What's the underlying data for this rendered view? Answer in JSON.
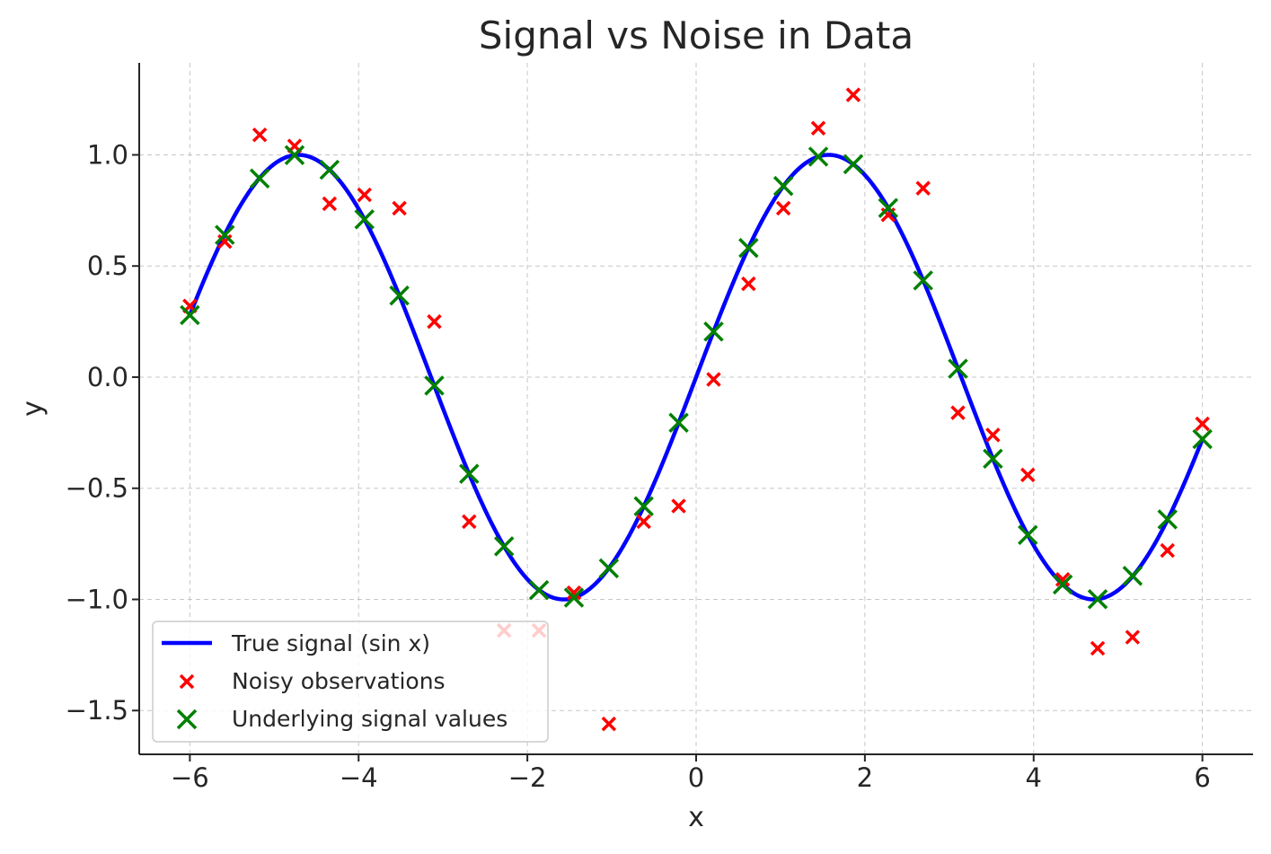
{
  "chart_data": {
    "type": "scatter",
    "title": "Signal vs Noise in Data",
    "xlabel": "x",
    "ylabel": "y",
    "xlim": [
      -6.6,
      6.6
    ],
    "ylim": [
      -1.697,
      1.414
    ],
    "grid": true,
    "legend_placement": "lower-left",
    "xticks": [
      -6,
      -4,
      -2,
      0,
      2,
      4,
      6
    ],
    "xtick_labels": [
      "−6",
      "−4",
      "−2",
      "0",
      "2",
      "4",
      "6"
    ],
    "yticks": [
      -1.5,
      -1.0,
      -0.5,
      0.0,
      0.5,
      1.0
    ],
    "ytick_labels": [
      "−1.5",
      "−1.0",
      "−0.5",
      "0.0",
      "0.5",
      "1.0"
    ],
    "series": [
      {
        "name": "True signal (sin x)",
        "kind": "line",
        "function": "sin",
        "x_range": [
          -6,
          6
        ],
        "color": "#0000ff"
      },
      {
        "name": "Noisy observations",
        "kind": "scatter",
        "marker": "x",
        "color": "#ff0000",
        "x": [
          -6.0,
          -5.586,
          -5.172,
          -4.759,
          -4.345,
          -3.931,
          -3.517,
          -3.103,
          -2.69,
          -2.276,
          -1.862,
          -1.448,
          -1.034,
          -0.621,
          -0.207,
          0.207,
          0.621,
          1.034,
          1.448,
          1.862,
          2.276,
          2.69,
          3.103,
          3.517,
          3.931,
          4.345,
          4.759,
          5.172,
          5.586,
          6.0
        ],
        "y": [
          0.32,
          0.61,
          1.09,
          1.04,
          0.78,
          0.82,
          0.76,
          0.25,
          -0.65,
          -1.14,
          -1.14,
          -0.97,
          -1.56,
          -0.65,
          -0.58,
          -0.01,
          0.42,
          0.76,
          1.12,
          1.27,
          0.73,
          0.85,
          -0.16,
          -0.26,
          -0.44,
          -0.91,
          -1.22,
          -1.17,
          -0.78,
          -0.21
        ]
      },
      {
        "name": "Underlying signal values",
        "kind": "scatter",
        "marker": "x",
        "color": "#008000",
        "x": [
          -6.0,
          -5.586,
          -5.172,
          -4.759,
          -4.345,
          -3.931,
          -3.517,
          -3.103,
          -2.69,
          -2.276,
          -1.862,
          -1.448,
          -1.034,
          -0.621,
          -0.207,
          0.207,
          0.621,
          1.034,
          1.448,
          1.862,
          2.276,
          2.69,
          3.103,
          3.517,
          3.931,
          4.345,
          4.759,
          5.172,
          5.586,
          6.0
        ],
        "y": [
          0.279,
          0.64,
          0.894,
          0.999,
          0.933,
          0.71,
          0.367,
          -0.038,
          -0.435,
          -0.761,
          -0.958,
          -0.992,
          -0.86,
          -0.581,
          -0.205,
          0.205,
          0.581,
          0.86,
          0.992,
          0.958,
          0.761,
          0.435,
          0.038,
          -0.367,
          -0.71,
          -0.933,
          -0.999,
          -0.894,
          -0.64,
          -0.279
        ]
      }
    ]
  }
}
